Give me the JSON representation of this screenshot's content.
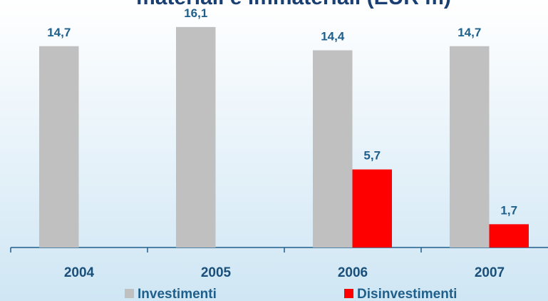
{
  "chart_data": {
    "type": "bar",
    "title": "materiali e immateriali (EUR m)",
    "categories": [
      "2004",
      "2005",
      "2006",
      "2007"
    ],
    "series": [
      {
        "name": "Investimenti",
        "color": "#c0c0c0",
        "values": [
          14.7,
          16.1,
          14.4,
          14.7
        ],
        "value_labels": [
          "14,7",
          "16,1",
          "14,4",
          "14,7"
        ]
      },
      {
        "name": "Disinvestimenti",
        "color": "#ff0000",
        "values": [
          null,
          null,
          5.7,
          1.7
        ],
        "value_labels": [
          null,
          null,
          "5,7",
          "1,7"
        ]
      }
    ]
  }
}
